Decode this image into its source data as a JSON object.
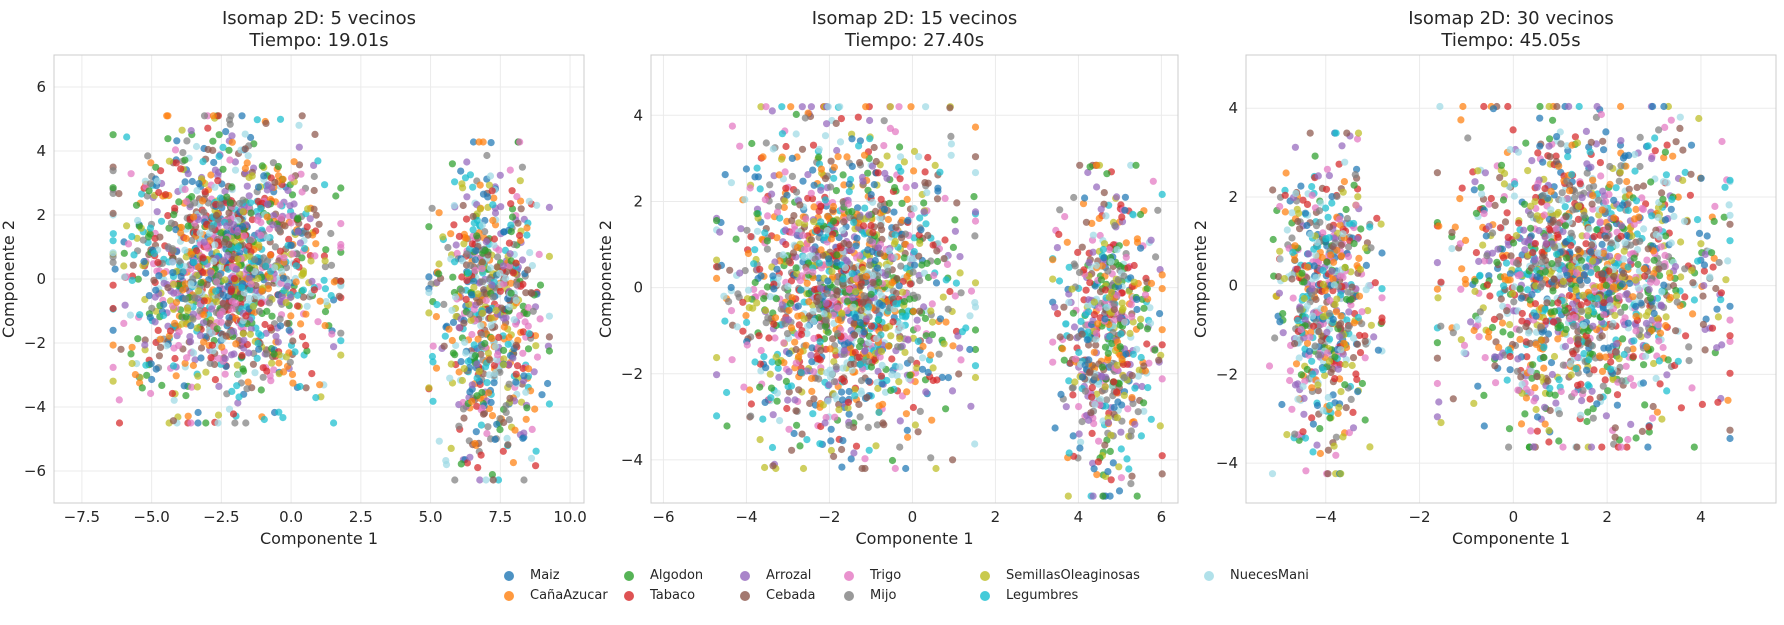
{
  "chart_data": [
    {
      "type": "scatter",
      "title": "Isomap 2D: 5 vecinos",
      "subtitle": "Tiempo: 19.01s",
      "xlabel": "Componente 1",
      "ylabel": "Componente 2",
      "xlim": [
        -8.5,
        10.5
      ],
      "ylim": [
        -7.0,
        7.0
      ],
      "xticks": [
        -7.5,
        -5.0,
        -2.5,
        0.0,
        2.5,
        5.0,
        7.5,
        10.0
      ],
      "xtick_labels": [
        "−7.5",
        "−5.0",
        "−2.5",
        "0.0",
        "2.5",
        "5.0",
        "7.5",
        "10.0"
      ],
      "yticks": [
        -6,
        -4,
        -2,
        0,
        2,
        4,
        6
      ],
      "ytick_labels": [
        "−6",
        "−4",
        "−2",
        "0",
        "2",
        "4",
        "6"
      ],
      "grid": true,
      "clusters": [
        {
          "cx": -2.3,
          "cy": 0.3,
          "sx": 1.7,
          "sy": 2.0,
          "share": 0.68
        },
        {
          "cx": 7.1,
          "cy": -1.0,
          "sx": 0.9,
          "sy": 2.2,
          "share": 0.32
        }
      ]
    },
    {
      "type": "scatter",
      "title": "Isomap 2D: 15 vecinos",
      "subtitle": "Tiempo: 27.40s",
      "xlabel": "Componente 1",
      "ylabel": "Componente 2",
      "xlim": [
        -6.3,
        6.4
      ],
      "ylim": [
        -5.0,
        5.4
      ],
      "xticks": [
        -6,
        -4,
        -2,
        0,
        2,
        4,
        6
      ],
      "xtick_labels": [
        "−6",
        "−4",
        "−2",
        "0",
        "2",
        "4",
        "6"
      ],
      "yticks": [
        -4,
        -2,
        0,
        2,
        4
      ],
      "ytick_labels": [
        "−4",
        "−2",
        "0",
        "2",
        "4"
      ],
      "grid": true,
      "clusters": [
        {
          "cx": -1.6,
          "cy": 0.0,
          "sx": 1.3,
          "sy": 1.75,
          "share": 0.72
        },
        {
          "cx": 4.7,
          "cy": -1.0,
          "sx": 0.55,
          "sy": 1.6,
          "share": 0.28
        }
      ]
    },
    {
      "type": "scatter",
      "title": "Isomap 2D: 30 vecinos",
      "subtitle": "Tiempo: 45.05s",
      "xlabel": "Componente 1",
      "ylabel": "Componente 2",
      "xlim": [
        -5.7,
        5.6
      ],
      "ylim": [
        -4.9,
        5.2
      ],
      "xticks": [
        -4,
        -2,
        0,
        2,
        4
      ],
      "xtick_labels": [
        "−4",
        "−2",
        "0",
        "2",
        "4"
      ],
      "yticks": [
        -4,
        -2,
        0,
        2,
        4
      ],
      "ytick_labels": [
        "−4",
        "−2",
        "0",
        "2",
        "4"
      ],
      "grid": true,
      "clusters": [
        {
          "cx": -4.0,
          "cy": -0.4,
          "sx": 0.5,
          "sy": 1.6,
          "share": 0.28
        },
        {
          "cx": 1.5,
          "cy": 0.2,
          "sx": 1.3,
          "sy": 1.6,
          "share": 0.72
        }
      ]
    }
  ],
  "legend": {
    "placement": "bottom-center",
    "items": [
      {
        "label": "Maiz",
        "color": "#1f77b4"
      },
      {
        "label": "CañaAzucar",
        "color": "#ff7f0e"
      },
      {
        "label": "Algodon",
        "color": "#2ca02c"
      },
      {
        "label": "Tabaco",
        "color": "#d62728"
      },
      {
        "label": "Arrozal",
        "color": "#9467bd"
      },
      {
        "label": "Cebada",
        "color": "#8c564b"
      },
      {
        "label": "Trigo",
        "color": "#e377c2"
      },
      {
        "label": "Mijo",
        "color": "#7f7f7f"
      },
      {
        "label": "SemillasOleaginosas",
        "color": "#bcbd22"
      },
      {
        "label": "Legumbres",
        "color": "#17becf"
      },
      {
        "label": "NuecesMani",
        "color": "#9edae5"
      }
    ]
  }
}
